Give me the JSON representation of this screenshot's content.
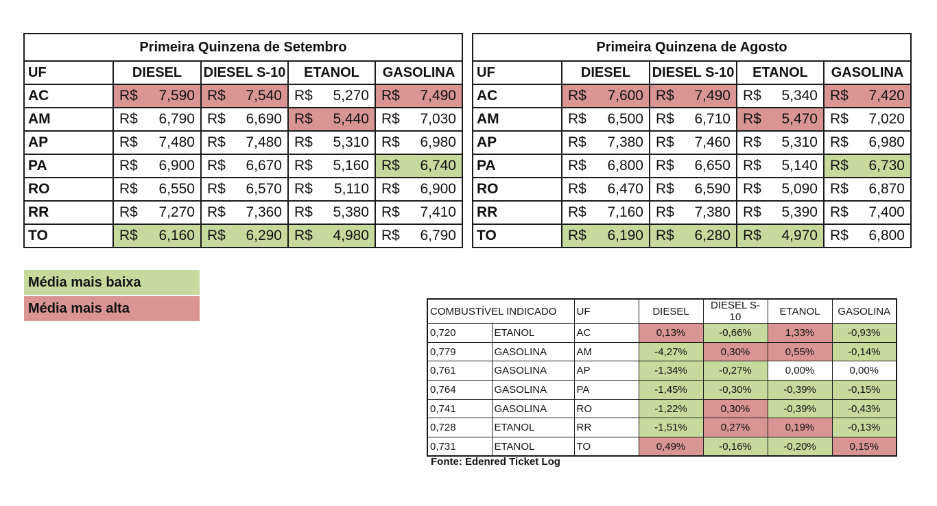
{
  "tables": [
    {
      "title": "Primeira Quinzena de Setembro",
      "headers": [
        "UF",
        "DIESEL",
        "DIESEL S-10",
        "ETANOL",
        "GASOLINA"
      ],
      "currency": "R$",
      "rows": [
        {
          "uf": "AC",
          "values": [
            "7,590",
            "7,540",
            "5,270",
            "7,490"
          ],
          "hl": [
            "high",
            "high",
            "",
            "high"
          ]
        },
        {
          "uf": "AM",
          "values": [
            "6,790",
            "6,690",
            "5,440",
            "7,030"
          ],
          "hl": [
            "",
            "",
            "high",
            ""
          ]
        },
        {
          "uf": "AP",
          "values": [
            "7,480",
            "7,480",
            "5,310",
            "6,980"
          ],
          "hl": [
            "",
            "",
            "",
            ""
          ]
        },
        {
          "uf": "PA",
          "values": [
            "6,900",
            "6,670",
            "5,160",
            "6,740"
          ],
          "hl": [
            "",
            "",
            "",
            "low"
          ]
        },
        {
          "uf": "RO",
          "values": [
            "6,550",
            "6,570",
            "5,110",
            "6,900"
          ],
          "hl": [
            "",
            "",
            "",
            ""
          ]
        },
        {
          "uf": "RR",
          "values": [
            "7,270",
            "7,360",
            "5,380",
            "7,410"
          ],
          "hl": [
            "",
            "",
            "",
            ""
          ]
        },
        {
          "uf": "TO",
          "values": [
            "6,160",
            "6,290",
            "4,980",
            "6,790"
          ],
          "hl": [
            "low",
            "low",
            "low",
            ""
          ]
        }
      ]
    },
    {
      "title": "Primeira Quinzena de Agosto",
      "headers": [
        "UF",
        "DIESEL",
        "DIESEL S-10",
        "ETANOL",
        "GASOLINA"
      ],
      "currency": "R$",
      "rows": [
        {
          "uf": "AC",
          "values": [
            "7,600",
            "7,490",
            "5,340",
            "7,420"
          ],
          "hl": [
            "high",
            "high",
            "",
            "high"
          ]
        },
        {
          "uf": "AM",
          "values": [
            "6,500",
            "6,710",
            "5,470",
            "7,020"
          ],
          "hl": [
            "",
            "",
            "high",
            ""
          ]
        },
        {
          "uf": "AP",
          "values": [
            "7,380",
            "7,460",
            "5,310",
            "6,980"
          ],
          "hl": [
            "",
            "",
            "",
            ""
          ]
        },
        {
          "uf": "PA",
          "values": [
            "6,800",
            "6,650",
            "5,140",
            "6,730"
          ],
          "hl": [
            "",
            "",
            "",
            "low"
          ]
        },
        {
          "uf": "RO",
          "values": [
            "6,470",
            "6,590",
            "5,090",
            "6,870"
          ],
          "hl": [
            "",
            "",
            "",
            ""
          ]
        },
        {
          "uf": "RR",
          "values": [
            "7,160",
            "7,380",
            "5,390",
            "7,400"
          ],
          "hl": [
            "",
            "",
            "",
            ""
          ]
        },
        {
          "uf": "TO",
          "values": [
            "6,190",
            "6,280",
            "4,970",
            "6,800"
          ],
          "hl": [
            "low",
            "low",
            "low",
            ""
          ]
        }
      ]
    }
  ],
  "legend": {
    "low_label": "Média mais baixa",
    "high_label": "Média mais alta"
  },
  "comparison": {
    "headers": [
      "COMBUSTÍVEL INDICADO",
      "UF",
      "DIESEL",
      "DIESEL S-10",
      "ETANOL",
      "GASOLINA"
    ],
    "rows": [
      {
        "ratio": "0,720",
        "fuel": "ETANOL",
        "uf": "AC",
        "values": [
          "0,13%",
          "-0,66%",
          "1,33%",
          "-0,93%"
        ],
        "hl": [
          "high",
          "low",
          "high",
          "low"
        ]
      },
      {
        "ratio": "0,779",
        "fuel": "GASOLINA",
        "uf": "AM",
        "values": [
          "-4,27%",
          "0,30%",
          "0,55%",
          "-0,14%"
        ],
        "hl": [
          "low",
          "high",
          "high",
          "low"
        ]
      },
      {
        "ratio": "0,761",
        "fuel": "GASOLINA",
        "uf": "AP",
        "values": [
          "-1,34%",
          "-0,27%",
          "0,00%",
          "0,00%"
        ],
        "hl": [
          "low",
          "low",
          "",
          ""
        ]
      },
      {
        "ratio": "0,764",
        "fuel": "GASOLINA",
        "uf": "PA",
        "values": [
          "-1,45%",
          "-0,30%",
          "-0,39%",
          "-0,15%"
        ],
        "hl": [
          "low",
          "low",
          "low",
          "low"
        ]
      },
      {
        "ratio": "0,741",
        "fuel": "GASOLINA",
        "uf": "RO",
        "values": [
          "-1,22%",
          "0,30%",
          "-0,39%",
          "-0,43%"
        ],
        "hl": [
          "low",
          "high",
          "low",
          "low"
        ]
      },
      {
        "ratio": "0,728",
        "fuel": "ETANOL",
        "uf": "RR",
        "values": [
          "-1,51%",
          "0,27%",
          "0,19%",
          "-0,13%"
        ],
        "hl": [
          "low",
          "high",
          "high",
          "low"
        ]
      },
      {
        "ratio": "0,731",
        "fuel": "ETANOL",
        "uf": "TO",
        "values": [
          "0,49%",
          "-0,16%",
          "-0,20%",
          "0,15%"
        ],
        "hl": [
          "high",
          "low",
          "low",
          "high"
        ]
      }
    ]
  },
  "source": "Fonte: Edenred Ticket Log",
  "colors": {
    "low": "#c6da9e",
    "high": "#d99494"
  }
}
